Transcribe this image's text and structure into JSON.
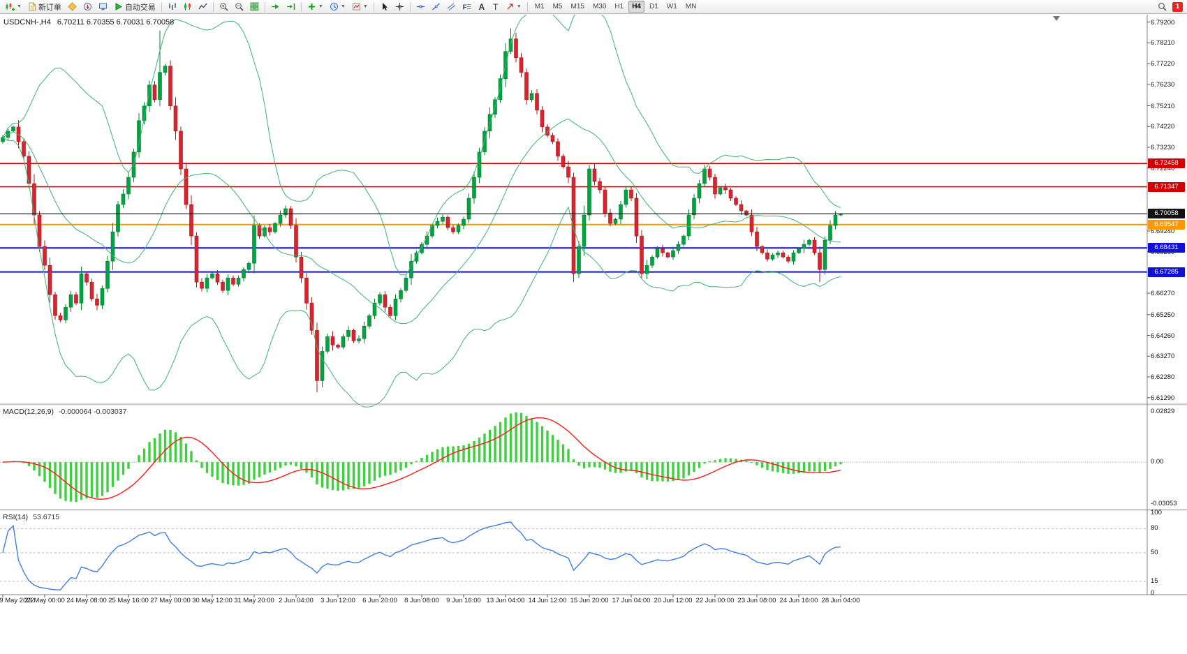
{
  "window": {
    "title_symbol": "USDCNH-,H4",
    "ohlc": "6.70211 6.70355 6.70031 6.70058"
  },
  "toolbar": {
    "new_order": "新订单",
    "autotrading": "自动交易",
    "timeframes": [
      "M1",
      "M5",
      "M15",
      "M30",
      "H1",
      "H4",
      "D1",
      "W1",
      "MN"
    ],
    "active_timeframe": "H4",
    "notification_count": "1"
  },
  "chart_data": {
    "type": "candlestick",
    "symbol": "USDCNH-",
    "timeframe": "H4",
    "price_range": {
      "top": 6.7952,
      "bottom": 6.6105
    },
    "closes": [
      6.737,
      6.74,
      6.742,
      6.735,
      6.728,
      6.715,
      6.7,
      6.685,
      6.676,
      6.662,
      6.652,
      6.65,
      6.656,
      6.662,
      6.658,
      6.672,
      6.668,
      6.66,
      6.657,
      6.665,
      6.678,
      6.692,
      6.705,
      6.71,
      6.718,
      6.73,
      6.745,
      6.752,
      6.762,
      6.755,
      6.768,
      6.771,
      6.752,
      6.74,
      6.722,
      6.705,
      6.69,
      6.668,
      6.665,
      6.67,
      6.672,
      6.668,
      6.664,
      6.67,
      6.667,
      6.67,
      6.674,
      6.677,
      6.695,
      6.69,
      6.694,
      6.692,
      6.696,
      6.7,
      6.703,
      6.695,
      6.68,
      6.67,
      6.658,
      6.645,
      6.621,
      6.635,
      6.642,
      6.638,
      6.637,
      6.642,
      6.645,
      6.64,
      6.641,
      6.647,
      6.652,
      6.658,
      6.662,
      6.656,
      6.652,
      6.66,
      6.664,
      6.67,
      6.678,
      6.682,
      6.686,
      6.69,
      6.695,
      6.697,
      6.699,
      6.694,
      6.692,
      6.695,
      6.698,
      6.708,
      6.718,
      6.73,
      6.74,
      6.748,
      6.755,
      6.765,
      6.778,
      6.784,
      6.775,
      6.768,
      6.755,
      6.758,
      6.75,
      6.742,
      6.738,
      6.735,
      6.728,
      6.723,
      6.718,
      6.672,
      6.685,
      6.7,
      6.722,
      6.716,
      6.712,
      6.701,
      6.696,
      6.698,
      6.705,
      6.712,
      6.708,
      6.69,
      6.672,
      6.676,
      6.68,
      6.684,
      6.682,
      6.68,
      6.683,
      6.686,
      6.69,
      6.7,
      6.708,
      6.715,
      6.722,
      6.718,
      6.71,
      6.713,
      6.712,
      6.708,
      6.705,
      6.702,
      6.7,
      6.692,
      6.685,
      6.682,
      6.679,
      6.681,
      6.682,
      6.68,
      6.678,
      6.682,
      6.684,
      6.686,
      6.688,
      6.682,
      6.674,
      6.688,
      6.695,
      6.7,
      6.7006
    ],
    "hi_over": {
      "30": 6.788,
      "97": 6.789
    },
    "lo_over": {
      "60": 6.6155,
      "109": 6.668,
      "156": 6.668
    },
    "wick_base": [
      0.0006,
      0.0014,
      0.0004,
      0.0018,
      0.0009
    ],
    "bollinger": {
      "period": 20,
      "deviation": 2
    },
    "axis_ticks": [
      {
        "label": "6.79200",
        "price": 6.792
      },
      {
        "label": "6.78210",
        "price": 6.7821
      },
      {
        "label": "6.77220",
        "price": 6.7722
      },
      {
        "label": "6.76230",
        "price": 6.7623
      },
      {
        "label": "6.75210",
        "price": 6.7521
      },
      {
        "label": "6.74220",
        "price": 6.7422
      },
      {
        "label": "6.73230",
        "price": 6.7323
      },
      {
        "label": "6.72240",
        "price": 6.7224
      },
      {
        "label": "6.69240",
        "price": 6.6924
      },
      {
        "label": "6.68250",
        "price": 6.6825
      },
      {
        "label": "6.66270",
        "price": 6.6627
      },
      {
        "label": "6.65250",
        "price": 6.6525
      },
      {
        "label": "6.64260",
        "price": 6.6426
      },
      {
        "label": "6.63270",
        "price": 6.6327
      },
      {
        "label": "6.62280",
        "price": 6.6228
      },
      {
        "label": "6.61290",
        "price": 6.6129
      }
    ],
    "level_lines": [
      {
        "price": 6.72458,
        "label": "6.72458",
        "color": "#d40000",
        "width": 1.6,
        "current": false
      },
      {
        "price": 6.71347,
        "label": "6.71347",
        "color": "#d40000",
        "width": 1.6,
        "current": false
      },
      {
        "price": 6.70058,
        "label": "6.70058",
        "color": "#111111",
        "width": 1.2,
        "current": true
      },
      {
        "price": 6.69547,
        "label": "6.69547",
        "color": "#ff9800",
        "width": 2,
        "current": false
      },
      {
        "price": 6.68431,
        "label": "6.68431",
        "color": "#0f0fd6",
        "width": 2,
        "current": false
      },
      {
        "price": 6.67285,
        "label": "6.67285",
        "color": "#0f0fd6",
        "width": 2,
        "current": false
      }
    ],
    "time_labels": [
      "19 May 2022",
      "23 May 00:00",
      "24 May 08:00",
      "25 May 16:00",
      "27 May 00:00",
      "30 May 12:00",
      "31 May 20:00",
      "2 Jun 04:00",
      "3 Jun 12:00",
      "6 Jun 20:00",
      "8 Jun 08:00",
      "9 Jun 16:00",
      "13 Jun 04:00",
      "14 Jun 12:00",
      "15 Jun 20:00",
      "17 Jun 04:00",
      "20 Jun 12:00",
      "22 Jun 00:00",
      "23 Jun 08:00",
      "24 Jun 16:00",
      "28 Jun 04:00"
    ],
    "indicators": {
      "macd": {
        "label": "MACD(12,26,9)",
        "values": "-0.000064 -0.003037",
        "fast": 12,
        "slow": 26,
        "signal": 9,
        "axis_max": "0.02829",
        "axis_zero": "0.00",
        "axis_min": "-0.03053"
      },
      "rsi": {
        "label": "RSI(14)",
        "value": "53.6715",
        "period": 14,
        "levels": [
          {
            "label": "100",
            "value": 100
          },
          {
            "label": "80",
            "value": 80
          },
          {
            "label": "50",
            "value": 50
          },
          {
            "label": "15",
            "value": 15
          },
          {
            "label": "0",
            "value": 0
          }
        ]
      }
    },
    "colors": {
      "up": "#00a341",
      "down": "#d9232e",
      "up_stroke": "#067f2e",
      "down_stroke": "#a31a1a",
      "bands": "#3cb371",
      "macd_hist": "#3dd13d",
      "macd_signal": "#ff1a1a",
      "rsi_line": "#3f7de0",
      "axis_text": "#1a1a1a"
    }
  }
}
